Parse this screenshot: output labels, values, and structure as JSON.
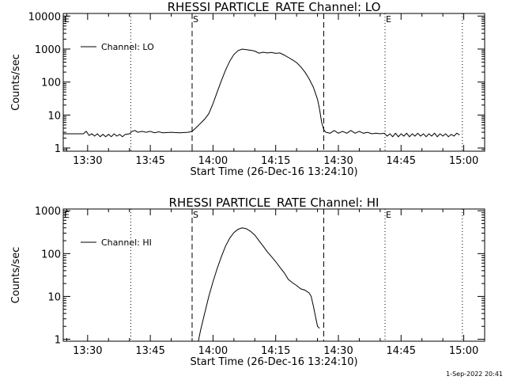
{
  "footer": {
    "timestamp": "1-Sep-2022 20:41"
  },
  "chart_data": [
    {
      "type": "line",
      "title": "RHESSI PARTICLE_RATE Channel: LO",
      "xlabel": "Start Time (26-Dec-16 13:24:10)",
      "ylabel": "Counts/sec",
      "yscale": "log",
      "ylim": [
        0.8,
        12000
      ],
      "xlim": [
        "13:24:10",
        "15:05:00"
      ],
      "x_ticks": [
        "13:30",
        "13:45",
        "14:00",
        "14:15",
        "14:30",
        "14:45",
        "15:00"
      ],
      "y_ticks": [
        "1",
        "10",
        "100",
        "1000",
        "10000"
      ],
      "legend": {
        "position": "top-left",
        "entries": [
          "Channel: LO"
        ]
      },
      "event_markers": [
        {
          "label": "E",
          "time": "13:24:10",
          "style": "dotted"
        },
        {
          "label": "",
          "time": "13:40:20",
          "style": "dotted"
        },
        {
          "label": "S",
          "time": "13:55:00",
          "style": "dashed"
        },
        {
          "label": "",
          "time": "14:26:30",
          "style": "dashed"
        },
        {
          "label": "E",
          "time": "14:41:10",
          "style": "dotted"
        },
        {
          "label": "",
          "time": "14:59:40",
          "style": "dotted"
        }
      ],
      "series": [
        {
          "name": "Channel: LO",
          "points": [
            [
              "13:24:10",
              2.7
            ],
            [
              "13:29:00",
              2.7
            ],
            [
              "13:29:40",
              3.2
            ],
            [
              "13:30:20",
              2.4
            ],
            [
              "13:31:00",
              2.7
            ],
            [
              "13:31:40",
              2.3
            ],
            [
              "13:32:20",
              2.7
            ],
            [
              "13:33:00",
              2.2
            ],
            [
              "13:33:40",
              2.6
            ],
            [
              "13:34:20",
              2.2
            ],
            [
              "13:35:00",
              2.6
            ],
            [
              "13:35:40",
              2.2
            ],
            [
              "13:36:20",
              2.7
            ],
            [
              "13:37:00",
              2.3
            ],
            [
              "13:37:40",
              2.6
            ],
            [
              "13:38:20",
              2.2
            ],
            [
              "13:39:00",
              2.6
            ],
            [
              "13:40:00",
              2.7
            ],
            [
              "13:40:40",
              3.2
            ],
            [
              "13:41:20",
              3.4
            ],
            [
              "13:42:00",
              3.0
            ],
            [
              "13:43:00",
              3.2
            ],
            [
              "13:44:00",
              3.0
            ],
            [
              "13:45:00",
              3.2
            ],
            [
              "13:46:00",
              2.9
            ],
            [
              "13:47:00",
              3.1
            ],
            [
              "13:48:00",
              2.9
            ],
            [
              "13:50:00",
              3.0
            ],
            [
              "13:52:00",
              2.9
            ],
            [
              "13:54:00",
              3.0
            ],
            [
              "13:55:00",
              3.2
            ],
            [
              "13:56:00",
              4.2
            ],
            [
              "13:57:00",
              5.6
            ],
            [
              "13:58:00",
              7.5
            ],
            [
              "13:59:00",
              11
            ],
            [
              "14:00:00",
              22
            ],
            [
              "14:01:00",
              50
            ],
            [
              "14:02:00",
              110
            ],
            [
              "14:03:00",
              230
            ],
            [
              "14:04:00",
              430
            ],
            [
              "14:05:00",
              680
            ],
            [
              "14:06:00",
              900
            ],
            [
              "14:07:00",
              1000
            ],
            [
              "14:08:00",
              960
            ],
            [
              "14:09:00",
              920
            ],
            [
              "14:10:00",
              870
            ],
            [
              "14:11:00",
              750
            ],
            [
              "14:12:00",
              800
            ],
            [
              "14:13:00",
              760
            ],
            [
              "14:14:00",
              790
            ],
            [
              "14:15:00",
              740
            ],
            [
              "14:16:00",
              760
            ],
            [
              "14:17:00",
              660
            ],
            [
              "14:18:00",
              560
            ],
            [
              "14:19:00",
              470
            ],
            [
              "14:20:00",
              390
            ],
            [
              "14:21:00",
              290
            ],
            [
              "14:22:00",
              200
            ],
            [
              "14:23:00",
              125
            ],
            [
              "14:24:00",
              70
            ],
            [
              "14:25:00",
              30
            ],
            [
              "14:25:30",
              15
            ],
            [
              "14:26:00",
              6
            ],
            [
              "14:26:30",
              3.6
            ],
            [
              "14:27:00",
              3.0
            ],
            [
              "14:28:00",
              2.8
            ],
            [
              "14:29:00",
              3.4
            ],
            [
              "14:30:00",
              2.8
            ],
            [
              "14:31:00",
              3.2
            ],
            [
              "14:32:00",
              2.8
            ],
            [
              "14:33:00",
              3.4
            ],
            [
              "14:34:00",
              2.8
            ],
            [
              "14:35:00",
              3.2
            ],
            [
              "14:36:00",
              2.8
            ],
            [
              "14:37:00",
              3.0
            ],
            [
              "14:38:00",
              2.7
            ],
            [
              "14:39:00",
              2.8
            ],
            [
              "14:40:00",
              2.7
            ],
            [
              "14:41:00",
              2.8
            ],
            [
              "14:41:40",
              2.3
            ],
            [
              "14:42:20",
              2.7
            ],
            [
              "14:43:00",
              2.2
            ],
            [
              "14:43:40",
              2.8
            ],
            [
              "14:44:20",
              2.2
            ],
            [
              "14:45:00",
              2.7
            ],
            [
              "14:45:40",
              2.3
            ],
            [
              "14:46:20",
              2.8
            ],
            [
              "14:47:00",
              2.2
            ],
            [
              "14:47:40",
              2.7
            ],
            [
              "14:48:20",
              2.3
            ],
            [
              "14:49:00",
              2.8
            ],
            [
              "14:49:40",
              2.3
            ],
            [
              "14:50:20",
              2.7
            ],
            [
              "14:51:00",
              2.2
            ],
            [
              "14:51:40",
              2.7
            ],
            [
              "14:52:20",
              2.3
            ],
            [
              "14:53:00",
              2.8
            ],
            [
              "14:53:40",
              2.2
            ],
            [
              "14:54:20",
              2.7
            ],
            [
              "14:55:00",
              2.3
            ],
            [
              "14:55:40",
              2.7
            ],
            [
              "14:56:20",
              2.2
            ],
            [
              "14:57:00",
              2.6
            ],
            [
              "14:57:40",
              2.3
            ],
            [
              "14:58:20",
              2.8
            ],
            [
              "14:59:00",
              2.5
            ]
          ]
        }
      ]
    },
    {
      "type": "line",
      "title": "RHESSI PARTICLE_RATE Channel: HI",
      "xlabel": "Start Time (26-Dec-16 13:24:10)",
      "ylabel": "Counts/sec",
      "yscale": "log",
      "ylim": [
        0.9,
        1100
      ],
      "xlim": [
        "13:24:10",
        "15:05:00"
      ],
      "x_ticks": [
        "13:30",
        "13:45",
        "14:00",
        "14:15",
        "14:30",
        "14:45",
        "15:00"
      ],
      "y_ticks": [
        "1",
        "10",
        "100",
        "1000"
      ],
      "legend": {
        "position": "top-left",
        "entries": [
          "Channel: HI"
        ]
      },
      "event_markers": [
        {
          "label": "E",
          "time": "13:24:10",
          "style": "dotted"
        },
        {
          "label": "",
          "time": "13:40:20",
          "style": "dotted"
        },
        {
          "label": "S",
          "time": "13:55:00",
          "style": "dashed"
        },
        {
          "label": "",
          "time": "14:26:30",
          "style": "dashed"
        },
        {
          "label": "E",
          "time": "14:41:10",
          "style": "dotted"
        },
        {
          "label": "",
          "time": "14:59:40",
          "style": "dotted"
        }
      ],
      "series": [
        {
          "name": "Channel: HI",
          "points": [
            [
              "13:56:30",
              0.9
            ],
            [
              "13:57:00",
              1.6
            ],
            [
              "13:58:00",
              4
            ],
            [
              "13:59:00",
              10
            ],
            [
              "14:00:00",
              22
            ],
            [
              "14:01:00",
              45
            ],
            [
              "14:02:00",
              85
            ],
            [
              "14:03:00",
              150
            ],
            [
              "14:04:00",
              230
            ],
            [
              "14:05:00",
              310
            ],
            [
              "14:06:00",
              370
            ],
            [
              "14:07:00",
              400
            ],
            [
              "14:08:00",
              380
            ],
            [
              "14:09:00",
              330
            ],
            [
              "14:10:00",
              270
            ],
            [
              "14:11:00",
              200
            ],
            [
              "14:12:00",
              150
            ],
            [
              "14:13:00",
              110
            ],
            [
              "14:14:00",
              85
            ],
            [
              "14:15:00",
              65
            ],
            [
              "14:16:00",
              48
            ],
            [
              "14:17:00",
              36
            ],
            [
              "14:18:00",
              25
            ],
            [
              "14:19:00",
              21
            ],
            [
              "14:20:00",
              18
            ],
            [
              "14:21:00",
              15
            ],
            [
              "14:22:00",
              14
            ],
            [
              "14:23:00",
              12
            ],
            [
              "14:23:30",
              10
            ],
            [
              "14:24:00",
              6
            ],
            [
              "14:24:30",
              3.5
            ],
            [
              "14:25:00",
              2.0
            ],
            [
              "14:25:30",
              1.8
            ]
          ]
        }
      ]
    }
  ]
}
